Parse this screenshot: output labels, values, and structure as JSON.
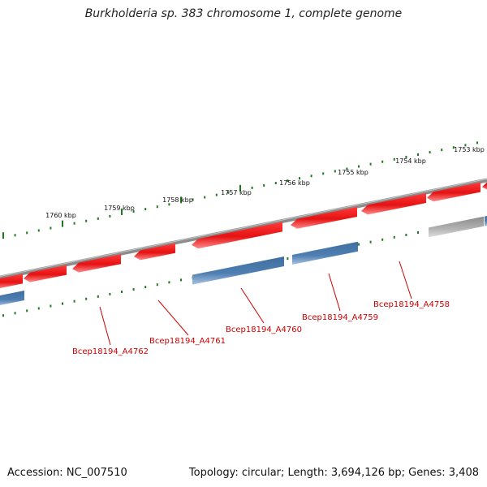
{
  "title": "Burkholderia sp. 383 chromosome 1, complete genome",
  "footer": {
    "accession": "Accession: NC_007510",
    "summary": "Topology: circular; Length: 3,694,126 bp; Genes: 3,408"
  },
  "ticks": [
    {
      "label": "1753 kbp"
    },
    {
      "label": "1754 kbp"
    },
    {
      "label": "1755 kbp"
    },
    {
      "label": "1756 kbp"
    },
    {
      "label": "1757 kbp"
    },
    {
      "label": "1758 kbp"
    },
    {
      "label": "1759 kbp"
    },
    {
      "label": "1760 kbp"
    }
  ],
  "gene_labels": [
    {
      "label": "Bcep18194_A4758"
    },
    {
      "label": "Bcep18194_A4759"
    },
    {
      "label": "Bcep18194_A4760"
    },
    {
      "label": "Bcep18194_A4761"
    },
    {
      "label": "Bcep18194_A4762"
    }
  ],
  "colors": {
    "forward_gene": "#e51c1c",
    "reverse_gene": "#4a7ab0",
    "other_feature": "#a8a8a8",
    "backbone": "#8c8c8c",
    "tick": "#1f7a1f",
    "gene_label": "#cc0000"
  }
}
